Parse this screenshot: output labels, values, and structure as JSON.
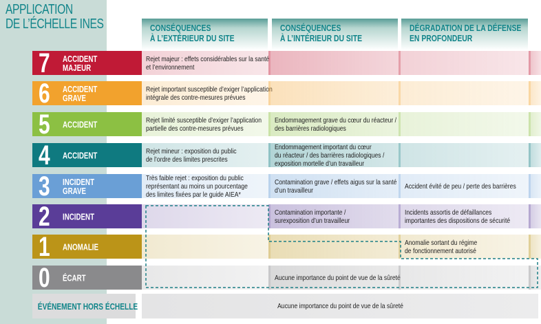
{
  "title": [
    "APPLICATION",
    "DE L’ÉCHELLE INES"
  ],
  "columns": [
    [
      "CONSÉQUENCES",
      "À L’EXTÉRIEUR DU SITE"
    ],
    [
      "CONSÉQUENCES",
      "À L’INTÉRIEUR DU SITE"
    ],
    [
      "DÉGRADATION DE LA DÉFENSE",
      "EN PROFONDEUR"
    ]
  ],
  "levels": [
    {
      "level": "7",
      "label": [
        "ACCIDENT",
        "MAJEUR"
      ],
      "color": "#c01a36",
      "cells": [
        [
          "Rejet majeur : effets considérables sur la santé",
          "et l’environnement"
        ],
        [],
        []
      ]
    },
    {
      "level": "6",
      "label": [
        "ACCIDENT",
        "GRAVE"
      ],
      "color": "#f2a22d",
      "cells": [
        [
          "Rejet important susceptible d’exiger l’application",
          "intégrale des contre-mesures prévues"
        ],
        [],
        []
      ]
    },
    {
      "level": "5",
      "label": [
        "ACCIDENT"
      ],
      "color": "#8cc043",
      "cells": [
        [
          "Rejet limité susceptible d’exiger l’application",
          "partielle des contre-mesures prévues"
        ],
        [
          "Endommagement grave du cœur du réacteur /",
          "des barrières radiologiques"
        ],
        []
      ]
    },
    {
      "level": "4",
      "label": [
        "ACCIDENT"
      ],
      "color": "#0f7a80",
      "cells": [
        [
          "Rejet mineur : exposition du public",
          "de l’ordre des limites prescrites"
        ],
        [
          "Endommagement important du cœur",
          "du réacteur / des barrières radiologiques /",
          "exposition mortelle d’un travailleur"
        ],
        []
      ]
    },
    {
      "level": "3",
      "label": [
        "INCIDENT",
        "GRAVE"
      ],
      "color": "#6a9fd6",
      "cells": [
        [
          "Très faible rejet : exposition du public",
          "représentant au moins un pourcentage",
          "des limites fixées par le guide AIEA*"
        ],
        [
          "Contamination grave / effets aigus sur la santé",
          "d’un travailleur"
        ],
        [
          "Accident évité de peu / perte des barrières"
        ]
      ]
    },
    {
      "level": "2",
      "label": [
        "INCIDENT"
      ],
      "color": "#5a3d98",
      "cells": [
        [],
        [
          "Contamination importante /",
          "surexposition d’un travailleur"
        ],
        [
          "Incidents assortis de défaillances",
          "importantes des dispositions de sécurité"
        ]
      ]
    },
    {
      "level": "1",
      "label": [
        "ANOMALIE"
      ],
      "color": "#bb9418",
      "cells": [
        [],
        [],
        [
          "Anomalie sortant du régime",
          "de fonctionnement autorisé"
        ]
      ]
    },
    {
      "level": "0",
      "label": [
        "ÉCART"
      ],
      "color": "#8a8a8c",
      "cells": [
        [],
        [
          "Aucune importance du point de vue de la sûreté"
        ],
        []
      ]
    }
  ],
  "out_of_scale": {
    "label": "ÉVÉNEMENT HORS ÉCHELLE",
    "text": "Aucune importance du point de vue de la sûreté"
  },
  "accent_color": "#12858a"
}
